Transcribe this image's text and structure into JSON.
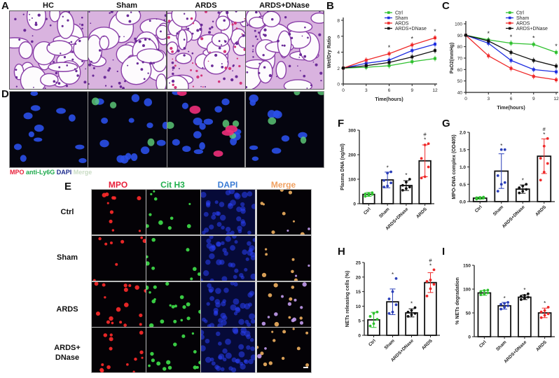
{
  "panels": {
    "A": {
      "label": "A",
      "columns": [
        "HC",
        "Sham",
        "ARDS",
        "ARDS+DNase"
      ]
    },
    "D": {
      "label": "D",
      "legend": [
        {
          "text": "MPO",
          "color": "#e8203a"
        },
        {
          "text": "anti-Ly6G",
          "color": "#1aa84a"
        },
        {
          "text": "DAPI",
          "color": "#1b2a8c"
        },
        {
          "text": "Merge",
          "color": "#c9dcc4"
        }
      ]
    },
    "E": {
      "label": "E",
      "columns": [
        {
          "text": "MPO",
          "color": "#e8203a"
        },
        {
          "text": "Cit H3",
          "color": "#22b04e"
        },
        {
          "text": "DAPI",
          "color": "#3a7bd5"
        },
        {
          "text": "Merge",
          "color": "#f0a060"
        }
      ],
      "rows": [
        "Ctrl",
        "Sham",
        "ARDS",
        "ARDS+\nDNase"
      ],
      "row_line1": [
        "Ctrl",
        "Sham",
        "ARDS",
        "ARDS+"
      ],
      "row_line2": [
        "",
        "",
        "",
        "DNase"
      ]
    },
    "B": {
      "label": "B"
    },
    "C": {
      "label": "C"
    },
    "F": {
      "label": "F"
    },
    "G": {
      "label": "G"
    },
    "H": {
      "label": "H"
    },
    "I": {
      "label": "I"
    }
  },
  "colors": {
    "ctrl": "#2fc12f",
    "sham": "#1e2ee0",
    "ards": "#ef2a2a",
    "ards_dnase": "#111111",
    "sham_bar": "#2b3fb8"
  },
  "chart_data": [
    {
      "id": "B",
      "type": "line",
      "title": "",
      "xlabel": "Time(hours)",
      "ylabel": "Wet/Dry Ratio",
      "x": [
        0,
        3,
        6,
        9,
        12
      ],
      "xticks": [
        "0",
        "3",
        "6",
        "9",
        "12"
      ],
      "yticks": [
        "0",
        "2",
        "4",
        "6",
        "8"
      ],
      "ylim": [
        0,
        8
      ],
      "legend_position": "top-right",
      "series": [
        {
          "name": "Ctrl",
          "color": "#2fc12f",
          "values": [
            2.0,
            2.1,
            2.3,
            2.8,
            3.2
          ]
        },
        {
          "name": "Sham",
          "color": "#1e2ee0",
          "values": [
            2.0,
            2.6,
            3.0,
            4.2,
            5.0
          ]
        },
        {
          "name": "ARDS",
          "color": "#ef2a2a",
          "values": [
            2.0,
            3.0,
            3.8,
            4.9,
            5.8
          ]
        },
        {
          "name": "ARDS+DNase",
          "color": "#111111",
          "values": [
            2.0,
            2.3,
            2.7,
            3.4,
            4.2
          ]
        }
      ],
      "annotations": [
        {
          "x": 6,
          "text": "*"
        },
        {
          "x": 9,
          "text": "*"
        },
        {
          "x": 12,
          "text": "*"
        }
      ]
    },
    {
      "id": "C",
      "type": "line",
      "title": "",
      "xlabel": "Time(hours)",
      "ylabel": "PaO2(mmHg)",
      "x": [
        0,
        3,
        6,
        9,
        12
      ],
      "xticks": [
        "0",
        "3",
        "6",
        "9",
        "12"
      ],
      "yticks": [
        "40",
        "50",
        "60",
        "70",
        "80",
        "90",
        "100"
      ],
      "ylim": [
        40,
        100
      ],
      "legend_position": "top-right",
      "series": [
        {
          "name": "Ctrl",
          "color": "#2fc12f",
          "values": [
            90,
            86,
            83,
            82,
            75
          ]
        },
        {
          "name": "Sham",
          "color": "#1e2ee0",
          "values": [
            90,
            83,
            68,
            60,
            58
          ]
        },
        {
          "name": "ARDS",
          "color": "#ef2a2a",
          "values": [
            90,
            72,
            61,
            54,
            51
          ]
        },
        {
          "name": "ARDS+DNase",
          "color": "#111111",
          "values": [
            90,
            85,
            75,
            68,
            63
          ]
        }
      ],
      "annotations": [
        {
          "x": 3,
          "text": "*"
        },
        {
          "x": 6,
          "text": "*"
        },
        {
          "x": 9,
          "text": "*"
        },
        {
          "x": 12,
          "text": "*"
        }
      ]
    },
    {
      "id": "F",
      "type": "bar",
      "ylabel": "Plasma DNA (ng/ml)",
      "categories": [
        "Ctrl",
        "Sham",
        "ARDS+DNase",
        "ARDS"
      ],
      "values": [
        38,
        97,
        74,
        175
      ],
      "errors": [
        8,
        32,
        20,
        65
      ],
      "yticks": [
        "0",
        "100",
        "200",
        "300"
      ],
      "ylim": [
        0,
        300
      ],
      "point_colors": [
        "#2fc12f",
        "#2b3fb8",
        "#111111",
        "#ef2a2a"
      ],
      "points": [
        [
          30,
          35,
          38,
          40,
          42,
          45
        ],
        [
          68,
          72,
          85,
          95,
          125,
          130
        ],
        [
          55,
          62,
          68,
          75,
          88,
          100
        ],
        [
          105,
          110,
          150,
          185,
          240,
          245
        ]
      ],
      "annotations": [
        [
          "",
          "*",
          "*",
          "#\n*"
        ]
      ],
      "sig": [
        "",
        "*",
        "*",
        "*"
      ],
      "hash": [
        "",
        "",
        "",
        "#"
      ]
    },
    {
      "id": "G",
      "type": "bar",
      "ylabel": "MPO-DNA complex (OD405)",
      "categories": [
        "Ctrl",
        "Sham",
        "ARDS+DNase",
        "ARDS"
      ],
      "values": [
        0.1,
        0.88,
        0.36,
        1.31
      ],
      "errors": [
        0.03,
        0.5,
        0.12,
        0.5
      ],
      "yticks": [
        "0.0",
        "0.5",
        "1.0",
        "1.5",
        "2.0"
      ],
      "ylim": [
        0,
        2.0
      ],
      "point_colors": [
        "#2fc12f",
        "#2b3fb8",
        "#111111",
        "#ef2a2a"
      ],
      "points": [
        [
          0.07,
          0.09,
          0.1,
          0.11,
          0.12,
          0.13
        ],
        [
          0.3,
          0.5,
          0.55,
          0.75,
          1.5,
          1.5
        ],
        [
          0.25,
          0.3,
          0.35,
          0.4,
          0.45,
          0.5
        ],
        [
          0.62,
          0.85,
          1.1,
          1.25,
          1.6,
          1.82
        ]
      ],
      "sig": [
        "",
        "*",
        "*",
        "*"
      ],
      "hash": [
        "",
        "",
        "",
        "#"
      ]
    },
    {
      "id": "H",
      "type": "bar",
      "ylabel": "NETs releasing cells (%)",
      "categories": [
        "Ctrl",
        "Sham",
        "ARDS+DNase",
        "ARDS"
      ],
      "values": [
        5.3,
        11.5,
        7.7,
        18.1
      ],
      "errors": [
        2.6,
        4.4,
        1.4,
        3.4
      ],
      "yticks": [
        "0",
        "5",
        "10",
        "15",
        "20",
        "25"
      ],
      "ylim": [
        0,
        25
      ],
      "point_colors": [
        "#2fc12f",
        "#2b3fb8",
        "#111111",
        "#ef2a2a"
      ],
      "points": [
        [
          3.2,
          4.0,
          5.5,
          6.5,
          7.5,
          8.0
        ],
        [
          7.5,
          8.0,
          10.5,
          12.5,
          15.0,
          19.5
        ],
        [
          6.5,
          7.0,
          7.5,
          8.0,
          8.5,
          9.5
        ],
        [
          13.5,
          16.0,
          17.5,
          18.5,
          19.0,
          22.5
        ]
      ],
      "sig": [
        "",
        "*",
        "*",
        "*"
      ],
      "hash": [
        "",
        "",
        "",
        "#"
      ]
    },
    {
      "id": "I",
      "type": "bar",
      "ylabel": "% NETs degradation",
      "categories": [
        "Ctrl",
        "Sham",
        "ARDS+DNase",
        "ARDS"
      ],
      "values": [
        92,
        65,
        83,
        50
      ],
      "errors": [
        5,
        7,
        5,
        10
      ],
      "yticks": [
        "0",
        "50",
        "100",
        "150"
      ],
      "ylim": [
        0,
        150
      ],
      "point_colors": [
        "#2fc12f",
        "#2b3fb8",
        "#111111",
        "#ef2a2a"
      ],
      "points": [
        [
          88,
          90,
          92,
          95,
          97,
          98
        ],
        [
          58,
          62,
          65,
          68,
          70,
          72
        ],
        [
          78,
          80,
          83,
          85,
          87,
          90
        ],
        [
          40,
          45,
          48,
          52,
          55,
          62
        ]
      ],
      "sig": [
        "",
        "*",
        "*",
        "*"
      ],
      "hash": [
        "",
        "",
        "",
        ""
      ]
    }
  ]
}
